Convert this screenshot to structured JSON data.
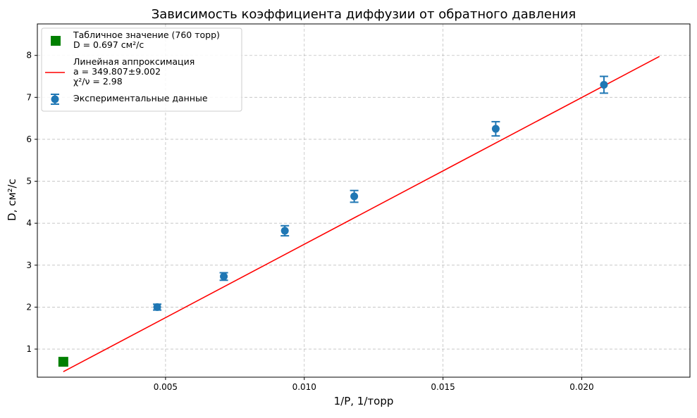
{
  "chart_data": {
    "type": "scatter",
    "title": "Зависимость коэффициента диффузии от обратного давления",
    "xlabel": "1/P, 1/торр",
    "ylabel": "D, см²/с",
    "xlim": [
      0.00038,
      0.0239
    ],
    "ylim": [
      0.33,
      8.75
    ],
    "xticks": [
      0.005,
      0.01,
      0.015,
      0.02
    ],
    "xtick_labels": [
      "0.005",
      "0.010",
      "0.015",
      "0.020"
    ],
    "yticks": [
      1,
      2,
      3,
      4,
      5,
      6,
      7,
      8
    ],
    "ytick_labels": [
      "1",
      "2",
      "3",
      "4",
      "5",
      "6",
      "7",
      "8"
    ],
    "grid": true,
    "legend_position": "top-left",
    "series": [
      {
        "name": "Экспериментальные данные",
        "kind": "errorbar",
        "color": "#1f77b4",
        "points": [
          {
            "x": 0.0047,
            "y": 2.0,
            "err": 0.07
          },
          {
            "x": 0.0071,
            "y": 2.73,
            "err": 0.09
          },
          {
            "x": 0.0093,
            "y": 3.82,
            "err": 0.12
          },
          {
            "x": 0.0118,
            "y": 4.64,
            "err": 0.14
          },
          {
            "x": 0.0169,
            "y": 6.25,
            "err": 0.17
          },
          {
            "x": 0.0208,
            "y": 7.3,
            "err": 0.2
          }
        ]
      },
      {
        "name": "Табличное значение (760 торр)",
        "kind": "marker",
        "color": "#008000",
        "points": [
          {
            "x": 0.001316,
            "y": 0.697
          }
        ]
      },
      {
        "name": "Линейная аппроксимация",
        "kind": "line",
        "color": "#ff0000",
        "slope": 349.807,
        "x_range": [
          0.001316,
          0.0228
        ]
      }
    ],
    "legend": [
      {
        "lines": [
          "Табличное значение (760 торр)",
          "D = 0.697 см²/с"
        ],
        "marker": "square",
        "color": "#008000"
      },
      {
        "lines": [
          "Линейная аппроксимация",
          "a = 349.807±9.002",
          "χ²/ν = 2.98"
        ],
        "marker": "line",
        "color": "#ff0000"
      },
      {
        "lines": [
          "Экспериментальные данные"
        ],
        "marker": "errorbar",
        "color": "#1f77b4"
      }
    ]
  }
}
